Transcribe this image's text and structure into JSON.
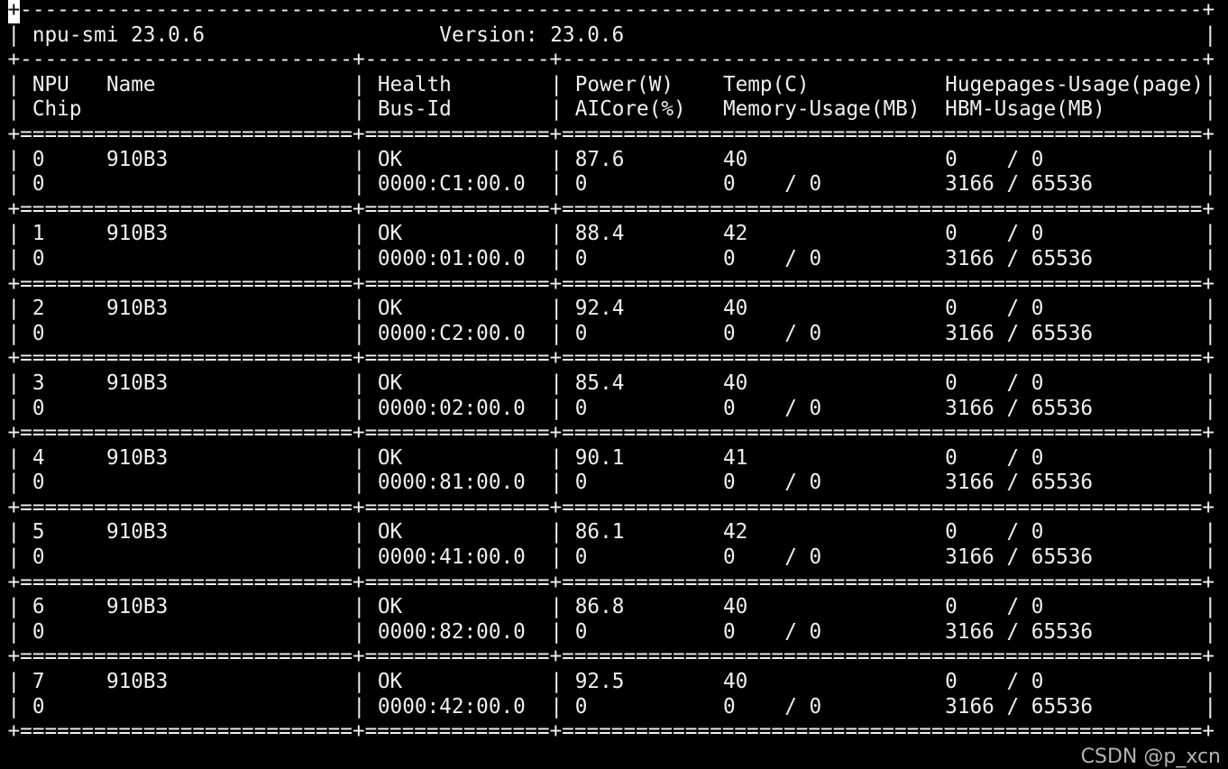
{
  "header": {
    "tool": "npu-smi 23.0.6",
    "version": "Version: 23.0.6"
  },
  "columns": {
    "row1": [
      "NPU",
      "Name",
      "Health",
      "Power(W)",
      "Temp(C)",
      "Hugepages-Usage(page)"
    ],
    "row2": [
      "Chip",
      "Bus-Id",
      "AICore(%)",
      "Memory-Usage(MB)",
      "HBM-Usage(MB)"
    ]
  },
  "devices": [
    {
      "npu": "0",
      "name": "910B3",
      "health": "OK",
      "power": "87.6",
      "temp": "40",
      "hugepages": "0    / 0",
      "chip": "0",
      "bus_id": "0000:C1:00.0",
      "aicore": "0",
      "memory": "0    / 0",
      "hbm": "3166 / 65536"
    },
    {
      "npu": "1",
      "name": "910B3",
      "health": "OK",
      "power": "88.4",
      "temp": "42",
      "hugepages": "0    / 0",
      "chip": "0",
      "bus_id": "0000:01:00.0",
      "aicore": "0",
      "memory": "0    / 0",
      "hbm": "3166 / 65536"
    },
    {
      "npu": "2",
      "name": "910B3",
      "health": "OK",
      "power": "92.4",
      "temp": "40",
      "hugepages": "0    / 0",
      "chip": "0",
      "bus_id": "0000:C2:00.0",
      "aicore": "0",
      "memory": "0    / 0",
      "hbm": "3166 / 65536"
    },
    {
      "npu": "3",
      "name": "910B3",
      "health": "OK",
      "power": "85.4",
      "temp": "40",
      "hugepages": "0    / 0",
      "chip": "0",
      "bus_id": "0000:02:00.0",
      "aicore": "0",
      "memory": "0    / 0",
      "hbm": "3166 / 65536"
    },
    {
      "npu": "4",
      "name": "910B3",
      "health": "OK",
      "power": "90.1",
      "temp": "41",
      "hugepages": "0    / 0",
      "chip": "0",
      "bus_id": "0000:81:00.0",
      "aicore": "0",
      "memory": "0    / 0",
      "hbm": "3166 / 65536"
    },
    {
      "npu": "5",
      "name": "910B3",
      "health": "OK",
      "power": "86.1",
      "temp": "42",
      "hugepages": "0    / 0",
      "chip": "0",
      "bus_id": "0000:41:00.0",
      "aicore": "0",
      "memory": "0    / 0",
      "hbm": "3166 / 65536"
    },
    {
      "npu": "6",
      "name": "910B3",
      "health": "OK",
      "power": "86.8",
      "temp": "40",
      "hugepages": "0    / 0",
      "chip": "0",
      "bus_id": "0000:82:00.0",
      "aicore": "0",
      "memory": "0    / 0",
      "hbm": "3166 / 65536"
    },
    {
      "npu": "7",
      "name": "910B3",
      "health": "OK",
      "power": "92.5",
      "temp": "40",
      "hugepages": "0    / 0",
      "chip": "0",
      "bus_id": "0000:42:00.0",
      "aicore": "0",
      "memory": "0    / 0",
      "hbm": "3166 / 65536"
    }
  ],
  "watermark": "CSDN @p_xcn"
}
